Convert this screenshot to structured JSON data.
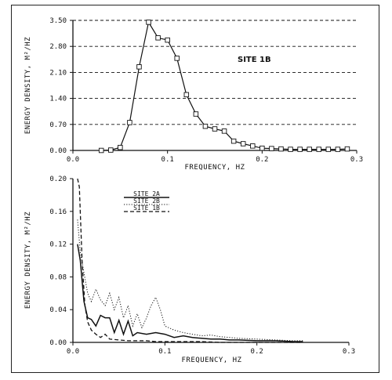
{
  "chart_data": [
    {
      "type": "line",
      "title": "",
      "xlabel": "FREQUENCY, HZ",
      "ylabel": "ENERGY DENSITY, M²/HZ",
      "xlim": [
        0,
        0.3
      ],
      "ylim": [
        0,
        3.5
      ],
      "xticks": [
        "0.0",
        "0.1",
        "0.2",
        "0.3"
      ],
      "yticks": [
        "0.00",
        "0.70",
        "1.40",
        "2.10",
        "2.80",
        "3.50"
      ],
      "grid": "horizontal dashed",
      "annotation": "SITE 1B",
      "series": [
        {
          "name": "",
          "marker": "square",
          "x": [
            0.03,
            0.04,
            0.05,
            0.06,
            0.07,
            0.08,
            0.09,
            0.1,
            0.11,
            0.12,
            0.13,
            0.14,
            0.15,
            0.16,
            0.17,
            0.18,
            0.19,
            0.2,
            0.21,
            0.22,
            0.23,
            0.24,
            0.25,
            0.26,
            0.27,
            0.28,
            0.29
          ],
          "y": [
            0.0,
            0.01,
            0.08,
            0.75,
            2.25,
            3.45,
            3.03,
            2.97,
            2.48,
            1.5,
            0.98,
            0.65,
            0.58,
            0.52,
            0.25,
            0.18,
            0.12,
            0.06,
            0.05,
            0.04,
            0.03,
            0.03,
            0.03,
            0.03,
            0.03,
            0.03,
            0.04
          ]
        }
      ]
    },
    {
      "type": "line",
      "title": "",
      "xlabel": "FREQUENCY, HZ",
      "ylabel": "ENERGY DENSITY, M²/HZ",
      "xlim": [
        0,
        0.3
      ],
      "ylim": [
        0,
        0.2
      ],
      "xticks": [
        "0.0",
        "0.1",
        "0.2",
        "0.3"
      ],
      "yticks": [
        "0.00",
        "0.04",
        "0.08",
        "0.12",
        "0.16",
        "0.20"
      ],
      "grid": "none",
      "legend": "top-left",
      "series": [
        {
          "name": "SITE 2A",
          "style": "solid",
          "x": [
            0.005,
            0.008,
            0.012,
            0.016,
            0.02,
            0.025,
            0.03,
            0.035,
            0.04,
            0.045,
            0.05,
            0.055,
            0.06,
            0.065,
            0.07,
            0.08,
            0.09,
            0.1,
            0.11,
            0.12,
            0.13,
            0.14,
            0.15,
            0.16,
            0.17,
            0.18,
            0.2,
            0.22,
            0.24,
            0.25
          ],
          "y": [
            0.12,
            0.1,
            0.05,
            0.03,
            0.028,
            0.02,
            0.033,
            0.03,
            0.03,
            0.012,
            0.027,
            0.01,
            0.026,
            0.008,
            0.012,
            0.01,
            0.012,
            0.01,
            0.006,
            0.008,
            0.006,
            0.005,
            0.004,
            0.004,
            0.003,
            0.003,
            0.002,
            0.002,
            0.001,
            0.001
          ]
        },
        {
          "name": "SITE 2B",
          "style": "dotted",
          "x": [
            0.005,
            0.008,
            0.012,
            0.016,
            0.02,
            0.025,
            0.03,
            0.035,
            0.04,
            0.045,
            0.05,
            0.055,
            0.06,
            0.065,
            0.07,
            0.075,
            0.08,
            0.085,
            0.09,
            0.095,
            0.1,
            0.11,
            0.12,
            0.13,
            0.14,
            0.15,
            0.16,
            0.17,
            0.18,
            0.2,
            0.22,
            0.24,
            0.25
          ],
          "y": [
            0.15,
            0.11,
            0.085,
            0.06,
            0.05,
            0.065,
            0.052,
            0.045,
            0.06,
            0.04,
            0.055,
            0.03,
            0.045,
            0.02,
            0.035,
            0.018,
            0.03,
            0.045,
            0.055,
            0.04,
            0.02,
            0.015,
            0.012,
            0.01,
            0.008,
            0.009,
            0.007,
            0.006,
            0.005,
            0.004,
            0.003,
            0.002,
            0.002
          ]
        },
        {
          "name": "SITE 1B",
          "style": "dashed",
          "x": [
            0.005,
            0.007,
            0.01,
            0.013,
            0.016,
            0.02,
            0.025,
            0.03,
            0.035,
            0.04,
            0.05,
            0.06,
            0.07,
            0.08,
            0.09,
            0.1,
            0.12,
            0.14,
            0.16,
            0.18,
            0.2,
            0.25
          ],
          "y": [
            0.2,
            0.19,
            0.1,
            0.045,
            0.025,
            0.015,
            0.01,
            0.006,
            0.01,
            0.004,
            0.003,
            0.002,
            0.002,
            0.002,
            0.001,
            0.001,
            0.001,
            0.001,
            0.0,
            0.0,
            0.0,
            0.0
          ]
        }
      ]
    }
  ]
}
